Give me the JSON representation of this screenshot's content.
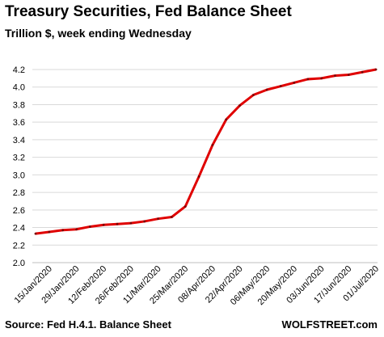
{
  "title": "Treasury Securities, Fed Balance Sheet",
  "subtitle": "Trillion $, week ending Wednesday",
  "source": "Source: Fed H.4.1. Balance Sheet",
  "brand": "WOLFSTREET.com",
  "chart_data": {
    "type": "line",
    "ylim": [
      2.0,
      4.2
    ],
    "yticks": [
      "2.0",
      "2.2",
      "2.4",
      "2.6",
      "2.8",
      "3.0",
      "3.2",
      "3.4",
      "3.6",
      "3.8",
      "4.0",
      "4.2"
    ],
    "grid": true,
    "x_tick_labels": [
      "15/Jan/2020",
      "29/Jan/2020",
      "12/Feb/2020",
      "26/Feb/2020",
      "11/Mar/2020",
      "25/Mar/2020",
      "08/Apr/2020",
      "22/Apr/2020",
      "06/May/2020",
      "20/May/2020",
      "03/Jun/2020",
      "17/Jun/2020",
      "01/Jul/2020"
    ],
    "x": [
      "08/Jan/2020",
      "15/Jan/2020",
      "22/Jan/2020",
      "29/Jan/2020",
      "05/Feb/2020",
      "12/Feb/2020",
      "19/Feb/2020",
      "26/Feb/2020",
      "04/Mar/2020",
      "11/Mar/2020",
      "18/Mar/2020",
      "25/Mar/2020",
      "01/Apr/2020",
      "08/Apr/2020",
      "15/Apr/2020",
      "22/Apr/2020",
      "29/Apr/2020",
      "06/May/2020",
      "13/May/2020",
      "20/May/2020",
      "27/May/2020",
      "03/Jun/2020",
      "10/Jun/2020",
      "17/Jun/2020",
      "24/Jun/2020",
      "01/Jul/2020"
    ],
    "values": [
      2.33,
      2.35,
      2.37,
      2.38,
      2.41,
      2.43,
      2.44,
      2.45,
      2.47,
      2.5,
      2.52,
      2.64,
      2.98,
      3.34,
      3.63,
      3.79,
      3.91,
      3.97,
      4.01,
      4.05,
      4.09,
      4.1,
      4.13,
      4.14,
      4.17,
      4.2
    ],
    "series": [
      {
        "values_ref": "values",
        "color": "#e00000"
      }
    ],
    "marker_color": "#7a0000",
    "grid_color": "#d9d9d9"
  }
}
